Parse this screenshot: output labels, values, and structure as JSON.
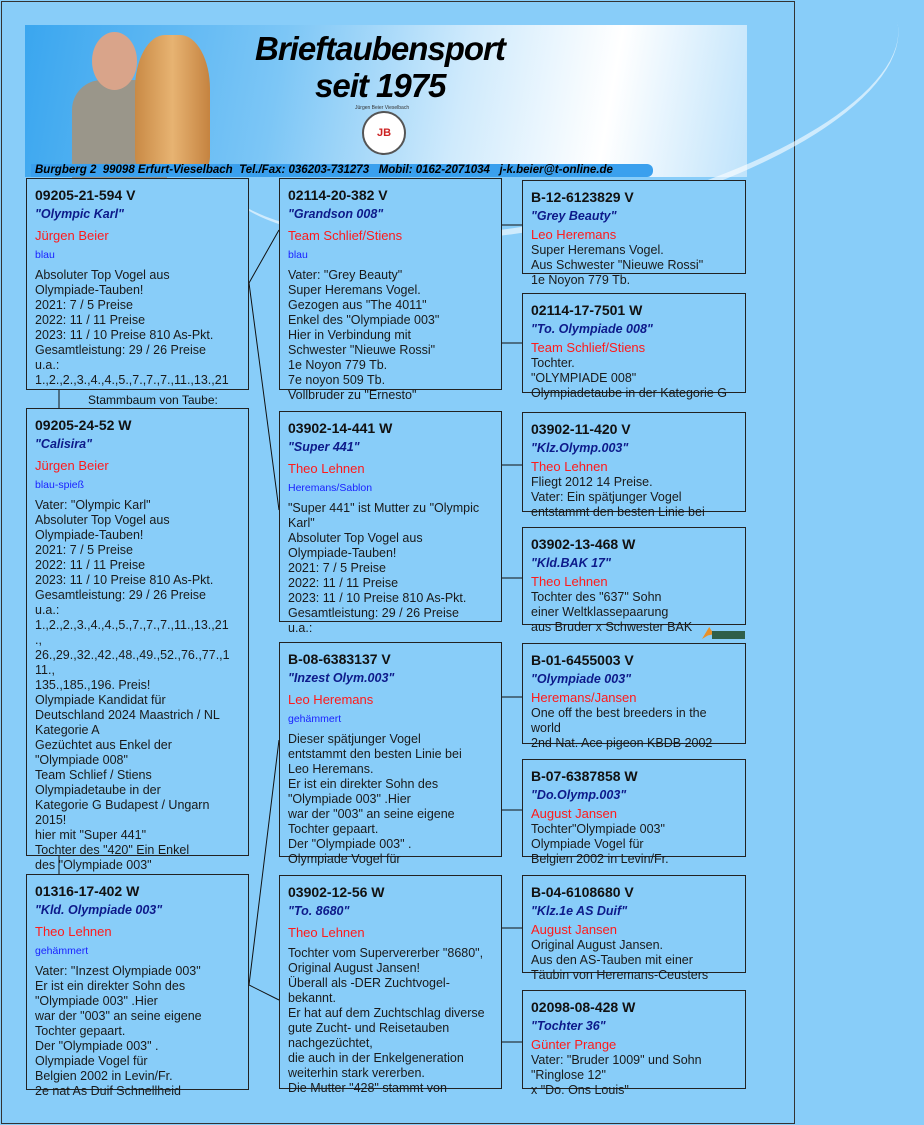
{
  "header": {
    "title_line1": "Brieftaubensport",
    "title_line2": "seit 1975",
    "logo_caption": "Jürgen Beier Vieselbach",
    "logo_text": "JB",
    "logo_ring_text": "Brieftaubensport",
    "address": "Burgberg 2  99098 Erfurt-Vieselbach  Tel./Fax: 036203-731273   Mobil: 0162-2071034   j-k.beier@t-online.de"
  },
  "stammbaum_label": "Stammbaum von Taube:",
  "boxes": [
    {
      "ring": "09205-21-594 V",
      "name": "\"Olympic Karl\"",
      "breeder": "Jürgen Beier",
      "color": "blau",
      "text": "Absoluter Top Vogel aus\nOlympiade-Tauben!\n2021:    7 /  5 Preise\n2022:  11 /  11 Preise\n2023:  11 / 10 Preise 810 As-Pkt.\nGesamtleistung: 29 / 26 Preise\nu.a.:\n1.,2.,2.,3.,4.,4.,5.,7.,7.,7.,11.,13.,21"
    },
    {
      "ring": "09205-24-52 W",
      "name": "\"Calisira\"",
      "breeder": "Jürgen Beier",
      "color": "blau-spieß",
      "text": "Vater: \"Olympic Karl\"\nAbsoluter Top Vogel aus\nOlympiade-Tauben!\n2021:    7 /  5 Preise\n2022:  11 /  11 Preise\n2023:  11 / 10 Preise 810 As-Pkt.\nGesamtleistung: 29 / 26 Preise\nu.a.:\n1.,2.,2.,3.,4.,4.,5.,7.,7.,7.,11.,13.,21\n.,\n26.,29.,32.,42.,48.,49.,52.,76.,77.,1\n11.,\n135.,185.,196. Preis!\nOlympiade Kandidat für\nDeutschland 2024 Maastrich / NL\nKategorie A\nGezüchtet aus Enkel der\n\"Olympiade 008\"\nTeam Schlief / Stiens\nOlympiadetaube in der\nKategorie G Budapest / Ungarn\n2015!\nhier mit  \"Super 441\"\nTochter des \"420\" Ein Enkel\ndes \"Olympiade 003\""
    },
    {
      "ring": "01316-17-402 W",
      "name": "\"Kld. Olympiade 003\"",
      "breeder": "Theo Lehnen",
      "color": "gehämmert",
      "text": "Vater: \"Inzest Olympiade 003\"\nEr ist ein direkter Sohn des\n\"Olympiade 003\" .Hier\nwar der \"003\" an seine eigene\nTochter gepaart.\nDer \"Olympiade 003\" .\nOlympiade Vogel für\nBelgien 2002 in Levin/Fr.\n2e nat As Duif Schnellheid"
    },
    {
      "ring": "02114-20-382 V",
      "name": "\"Grandson 008\"",
      "breeder": "Team  Schlief/Stiens",
      "color": "blau",
      "text": "Vater: \"Grey Beauty\"\nSuper Heremans Vogel.\nGezogen aus \"The 4011\"\nEnkel des \"Olympiade 003\"\nHier in Verbindung mit\nSchwester \"Nieuwe Rossi\"\n1e Noyon 779 Tb.\n7e noyon 509 Tb.\nVollbruder zu \"Ernesto\""
    },
    {
      "ring": "03902-14-441 W",
      "name": "\"Super 441\"",
      "breeder": "Theo Lehnen",
      "color": "Heremans/Sablon",
      "text": "\"Super 441\" ist Mutter zu \"Olympic Karl\"\nAbsoluter Top Vogel aus\nOlympiade-Tauben!\n2021:    7 /  5 Preise\n2022:  11 /  11 Preise\n2023:  11 / 10 Preise 810 As-Pkt.\nGesamtleistung: 29 / 26 Preise\nu.a.:"
    },
    {
      "ring": "B-08-6383137 V",
      "name": "\"Inzest Olym.003\"",
      "breeder": "Leo Heremans",
      "color": "gehämmert",
      "text": "Dieser spätjunger Vogel\nentstammt den besten Linie bei\nLeo Heremans.\nEr ist ein direkter Sohn des\n\"Olympiade 003\" .Hier\nwar der \"003\" an seine eigene\nTochter gepaart.\nDer \"Olympiade 003\" .\nOlympiade Vogel für"
    },
    {
      "ring": "03902-12-56 W",
      "name": "\"To. 8680\"",
      "breeder": "Theo Lehnen",
      "color": "",
      "text": "Tochter vom Supervererber \"8680\",\nOriginal August Jansen!\nÜberall als -DER Zuchtvogel-\nbekannt.\nEr hat auf dem Zuchtschlag diverse\ngute Zucht- und Reisetauben\nnachgezüchtet,\ndie auch in der Enkelgeneration\nweiterhin stark vererben.\nDie Mutter \"428\" stammt von"
    },
    {
      "ring": "B-12-6123829 V",
      "name": "\"Grey Beauty\"",
      "breeder": "Leo Heremans",
      "text": "Super Heremans Vogel.\nAus Schwester \"Nieuwe Rossi\"\n1e Noyon 779 Tb."
    },
    {
      "ring": "02114-17-7501 W",
      "name": "\"To. Olympiade 008\"",
      "breeder": "Team  Schlief/Stiens",
      "text": "Tochter.\n\"OLYMPIADE 008\"\nOlympiadetaube in der Kategorie G"
    },
    {
      "ring": "03902-11-420 V",
      "name": "\"Klz.Olymp.003\"",
      "breeder": "Theo Lehnen",
      "text": "Fliegt 2012 14 Preise.\nVater: Ein spätjunger Vogel\nentstammt den besten Linie bei"
    },
    {
      "ring": "03902-13-468 W",
      "name": "\"Kld.BAK 17\"",
      "breeder": "Theo Lehnen",
      "text": "Tochter des \"637\" Sohn\neiner Weltklassepaarung\n  aus Bruder x Schwester BAK"
    },
    {
      "ring": "B-01-6455003 V",
      "name": "\"Olympiade 003\"",
      "breeder": "Heremans/Jansen",
      "text": "One off the best breeders in the\nworld\n2nd Nat. Ace pigeon KBDB 2002"
    },
    {
      "ring": "B-07-6387858 W",
      "name": "\"Do.Olymp.003\"",
      "breeder": "August Jansen",
      "text": "Tochter\"Olympiade 003\"\nOlympiade Vogel für\nBelgien 2002 in Levin/Fr."
    },
    {
      "ring": "B-04-6108680 V",
      "name": "\"Klz.1e AS Duif\"",
      "breeder": "August Jansen",
      "text": "Original August Jansen.\nAus den AS-Tauben mit einer\nTäubin von Heremans-Ceusters"
    },
    {
      "ring": "02098-08-428 W",
      "name": "\"Tochter 36\"",
      "breeder": "Günter Prange",
      "text": "Vater: \"Bruder 1009\" und Sohn\n\"Ringlose 12\"\nx \"Do. Ons Louis\""
    }
  ],
  "colors": {
    "background": "#88cdf9",
    "name": "#0d1a8a",
    "breeder": "#ff1a1a",
    "pigeon_color": "#1a22ff"
  }
}
